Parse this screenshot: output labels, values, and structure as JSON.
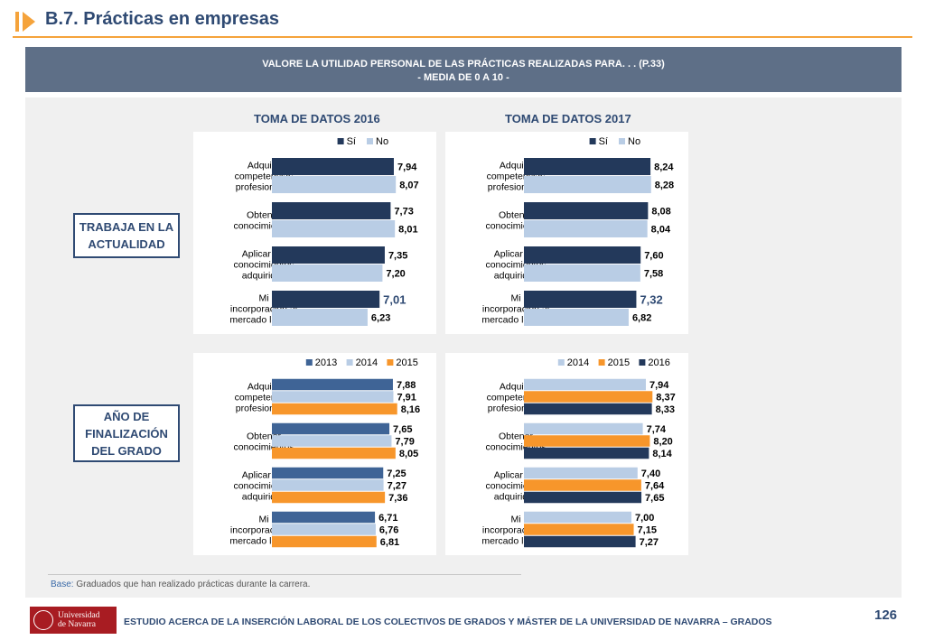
{
  "header": {
    "title": "B.7. Prácticas en empresas"
  },
  "banner": {
    "line1": "VALORE LA UTILIDAD PERSONAL DE LAS PRÁCTICAS REALIZADAS PARA. . . (P.33)",
    "line2": "- MEDIA DE 0 A 10 -"
  },
  "columns": [
    "TOMA DE DATOS 2016",
    "TOMA DE DATOS 2017"
  ],
  "row_groups": [
    {
      "lines": [
        "TRABAJA EN LA",
        "ACTUALIDAD"
      ]
    },
    {
      "lines": [
        "AÑO DE",
        "FINALIZACIÓN",
        "DEL GRADO"
      ]
    }
  ],
  "colors": {
    "dark_navy": "#23395b",
    "steel_blue": "#3f6496",
    "light_blue": "#b9cde5",
    "orange": "#f7962b",
    "title": "#2f4a73",
    "accent": "#f5a33b"
  },
  "chart_data": [
    {
      "id": "trabaja-2016",
      "type": "bar",
      "orientation": "horizontal",
      "xlim": [
        0,
        10
      ],
      "categories": [
        "Adquirir\ncompetencias\nprofesionales",
        "Obtener\nconocimientos",
        "Aplicar los\nconocimientos\nadquiridos",
        "Mi\nincorporación al\nmercado laboral"
      ],
      "series": [
        {
          "name": "Sí",
          "color": "#23395b",
          "values": [
            7.94,
            7.73,
            7.35,
            7.01
          ],
          "labels": [
            "7,94",
            "7,73",
            "7,35",
            "7,01"
          ]
        },
        {
          "name": "No",
          "color": "#b9cde5",
          "values": [
            8.07,
            8.01,
            7.2,
            6.23
          ],
          "labels": [
            "8,07",
            "8,01",
            "7,20",
            "6,23"
          ]
        }
      ],
      "legend_position": "top"
    },
    {
      "id": "trabaja-2017",
      "type": "bar",
      "orientation": "horizontal",
      "xlim": [
        0,
        10
      ],
      "categories": [
        "Adquirir\ncompetencias\nprofesionales",
        "Obtener\nconocimientos",
        "Aplicar los\nconocimientos\nadquiridos",
        "Mi\nincorporación al\nmercado laboral"
      ],
      "series": [
        {
          "name": "Sí",
          "color": "#23395b",
          "values": [
            8.24,
            8.08,
            7.6,
            7.32
          ],
          "labels": [
            "8,24",
            "8,08",
            "7,60",
            "7,32"
          ]
        },
        {
          "name": "No",
          "color": "#b9cde5",
          "values": [
            8.28,
            8.04,
            7.58,
            6.82
          ],
          "labels": [
            "8,28",
            "8,04",
            "7,58",
            "6,82"
          ]
        }
      ],
      "legend_position": "top"
    },
    {
      "id": "finalizacion-2016",
      "type": "bar",
      "orientation": "horizontal",
      "xlim": [
        0,
        10
      ],
      "categories": [
        "Adquirir\ncompetencias\nprofesionales",
        "Obtener\nconocimientos",
        "Aplicar los\nconocimientos\nadquiridos",
        "Mi\nincorporación al\nmercado laboral"
      ],
      "series": [
        {
          "name": "2013",
          "color": "#3f6496",
          "values": [
            7.88,
            7.65,
            7.25,
            6.71
          ],
          "labels": [
            "7,88",
            "7,65",
            "7,25",
            "6,71"
          ]
        },
        {
          "name": "2014",
          "color": "#b9cde5",
          "values": [
            7.91,
            7.79,
            7.27,
            6.76
          ],
          "labels": [
            "7,91",
            "7,79",
            "7,27",
            "6,76"
          ]
        },
        {
          "name": "2015",
          "color": "#f7962b",
          "values": [
            8.16,
            8.05,
            7.36,
            6.81
          ],
          "labels": [
            "8,16",
            "8,05",
            "7,36",
            "6,81"
          ]
        }
      ],
      "legend_position": "top"
    },
    {
      "id": "finalizacion-2017",
      "type": "bar",
      "orientation": "horizontal",
      "xlim": [
        0,
        10
      ],
      "categories": [
        "Adquirir\ncompetencias\nprofesionales",
        "Obtener\nconocimientos",
        "Aplicar los\nconocimientos\nadquiridos",
        "Mi\nincorporación al\nmercado laboral"
      ],
      "series": [
        {
          "name": "2014",
          "color": "#b9cde5",
          "values": [
            7.94,
            7.74,
            7.4,
            7.0
          ],
          "labels": [
            "7,94",
            "7,74",
            "7,40",
            "7,00"
          ]
        },
        {
          "name": "2015",
          "color": "#f7962b",
          "values": [
            8.37,
            8.2,
            7.64,
            7.15
          ],
          "labels": [
            "8,37",
            "8,20",
            "7,64",
            "7,15"
          ]
        },
        {
          "name": "2016",
          "color": "#23395b",
          "values": [
            8.33,
            8.14,
            7.65,
            7.27
          ],
          "labels": [
            "8,33",
            "8,14",
            "7,65",
            "7,27"
          ]
        }
      ],
      "legend_position": "top"
    }
  ],
  "footer": {
    "base_lead": "Base:",
    "base_text": " Graduados que han realizado prácticas durante la carrera.",
    "logo_line1": "Universidad",
    "logo_line2": "de Navarra",
    "study_title": "ESTUDIO ACERCA DE LA INSERCIÓN LABORAL DE LOS COLECTIVOS DE GRADOS Y MÁSTER DE LA UNIVERSIDAD DE NAVARRA – GRADOS",
    "page_number": "126"
  }
}
